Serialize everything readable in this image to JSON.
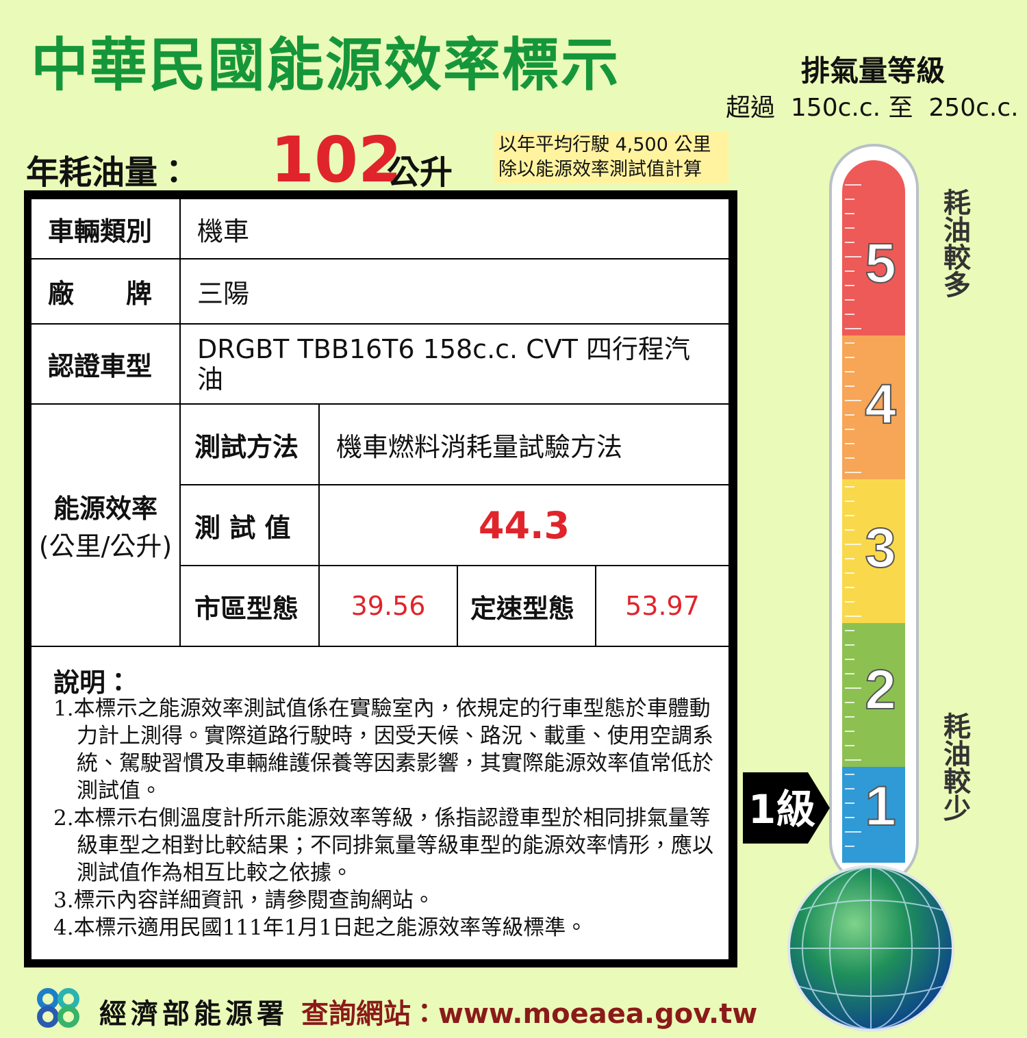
{
  "header": {
    "title": "中華民國能源效率標示",
    "displacement_title": "排氣量等級",
    "displacement_range": "超過  150c.c. 至  250c.c."
  },
  "annual_fuel": {
    "label": "年耗油量：",
    "value": "102",
    "unit": "公升",
    "note": [
      "以年平均行駛 4,500 公里",
      "除以能源效率測試值計算"
    ]
  },
  "table": {
    "vehicle_type": {
      "label": "車輛類別",
      "value": "機車"
    },
    "brand": {
      "label": "廠　　牌",
      "value": "三陽"
    },
    "model": {
      "label": "認證車型",
      "value": "DRGBT TBB16T6 158c.c. CVT 四行程汽油"
    },
    "efficiency": {
      "label": [
        "能源效率",
        "(公里/公升)"
      ],
      "method": {
        "label": "測試方法",
        "value": "機車燃料消耗量試驗方法"
      },
      "test_value": {
        "label": "測 試 值",
        "value": "44.3"
      },
      "city": {
        "label": "市區型態",
        "value": "39.56"
      },
      "highway": {
        "label": "定速型態",
        "value": "53.97"
      }
    }
  },
  "notes": {
    "title": "說明：",
    "items": [
      "1.本標示之能源效率測試值係在實驗室內，依規定的行車型態於車體動力計上測得。實際道路行駛時，因受天候、路況、載重、使用空調系統、駕駛習慣及車輛維護保養等因素影響，其實際能源效率值常低於測試值。",
      "2.本標示右側溫度計所示能源效率等級，係指認證車型於相同排氣量等級車型之相對比較結果；不同排氣量等級車型的能源效率情形，應以測試值作為相互比較之依據。",
      "3.標示內容詳細資訊，請參閱查詢網站。",
      "4.本標示適用民國111年1月1日起之能源效率等級標準。"
    ]
  },
  "thermometer": {
    "levels": [
      "5",
      "4",
      "3",
      "2",
      "1"
    ],
    "rating": "1級",
    "high_label": "耗油較多",
    "low_label": "耗油較少"
  },
  "footer": {
    "agency": "經濟部能源署",
    "website": "查詢網站：www.moeaea.gov.tw"
  }
}
